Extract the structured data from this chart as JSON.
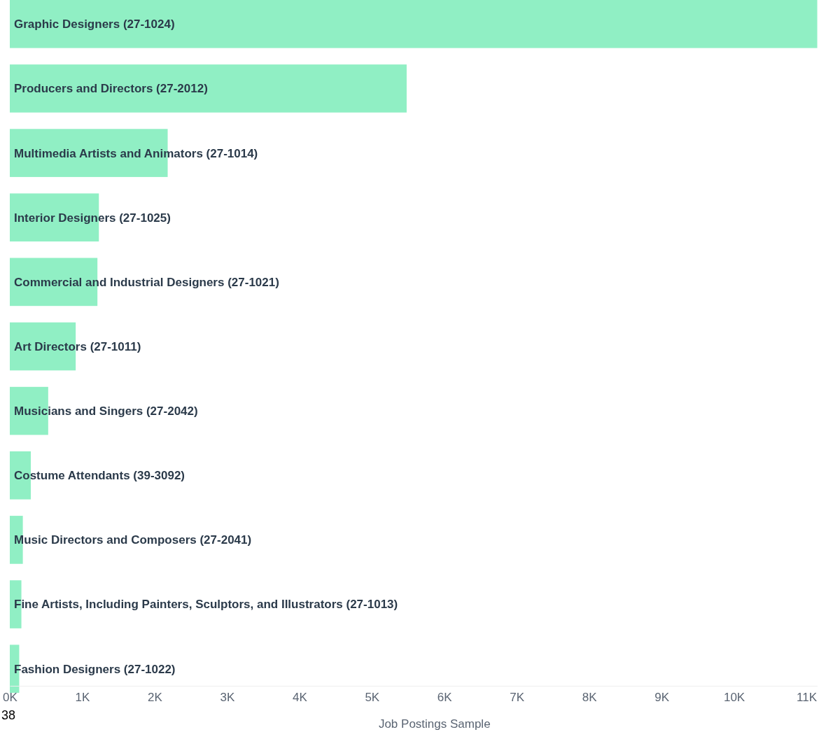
{
  "chart_data": {
    "type": "bar",
    "orientation": "horizontal",
    "xlabel": "Job Postings Sample",
    "categories": [
      "Graphic Designers (27-1024)",
      "Producers and Directors (27-2012)",
      "Multimedia Artists and Animators (27-1014)",
      "Interior Designers (27-1025)",
      "Commercial and Industrial Designers (27-1021)",
      "Art Directors (27-1011)",
      "Musicians and Singers (27-2042)",
      "Costume Attendants (39-3092)",
      "Music Directors and Composers (27-2041)",
      "Fine Artists, Including Painters, Sculptors, and Illustrators (27-1013)",
      "Fashion Designers (27-1022)"
    ],
    "values": [
      11150,
      5480,
      2180,
      1230,
      1210,
      910,
      530,
      290,
      180,
      160,
      130
    ],
    "color": "#90efc4",
    "xlim": [
      0,
      11150
    ],
    "xticks": [
      {
        "value": 0,
        "label": "0K"
      },
      {
        "value": 1000,
        "label": "1K"
      },
      {
        "value": 2000,
        "label": "2K"
      },
      {
        "value": 3000,
        "label": "3K"
      },
      {
        "value": 4000,
        "label": "4K"
      },
      {
        "value": 5000,
        "label": "5K"
      },
      {
        "value": 6000,
        "label": "6K"
      },
      {
        "value": 7000,
        "label": "7K"
      },
      {
        "value": 8000,
        "label": "8K"
      },
      {
        "value": 9000,
        "label": "9K"
      },
      {
        "value": 10000,
        "label": "10K"
      },
      {
        "value": 11000,
        "label": "11K"
      }
    ],
    "grid": false,
    "annotations": [
      "38"
    ]
  }
}
